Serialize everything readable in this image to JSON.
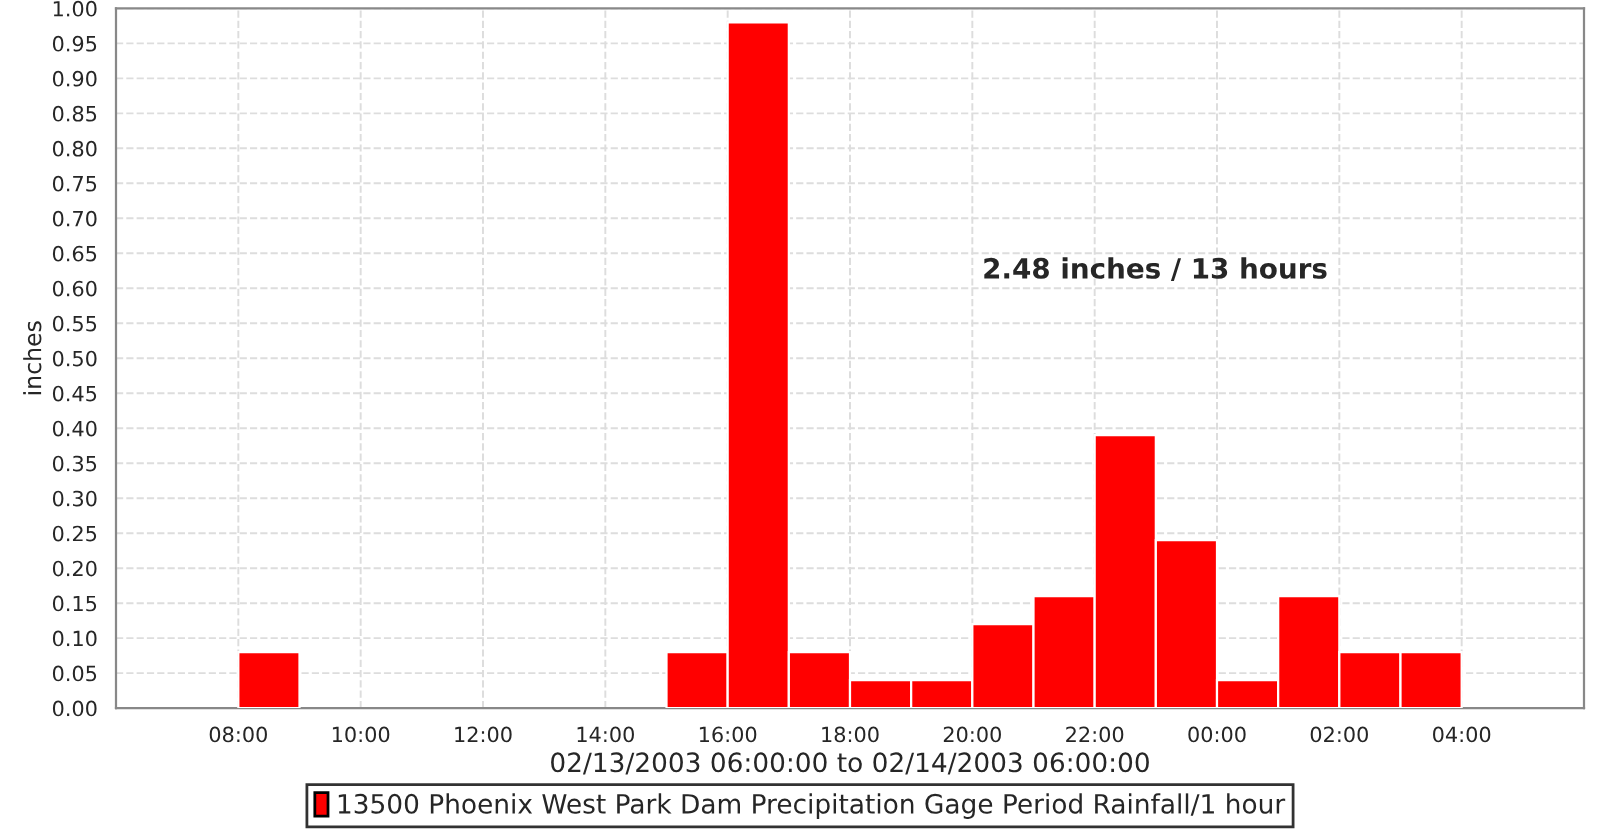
{
  "chart_data": {
    "type": "bar",
    "xlabel": "02/13/2003 06:00:00 to 02/14/2003 06:00:00",
    "ylabel": "inches",
    "annotations": [
      "2.48 inches / 13 hours"
    ],
    "x": [
      "2003-02-13T08:30",
      "2003-02-13T15:30",
      "2003-02-13T16:30",
      "2003-02-13T17:30",
      "2003-02-13T18:30",
      "2003-02-13T19:30",
      "2003-02-13T20:30",
      "2003-02-13T21:30",
      "2003-02-13T22:30",
      "2003-02-13T23:30",
      "2003-02-14T00:30",
      "2003-02-14T01:30",
      "2003-02-14T02:30",
      "2003-02-14T03:30"
    ],
    "series": [
      {
        "name": "13500 Phoenix West Park Dam Precipitation Gage Period Rainfall/1 hour",
        "color": "#ff0000",
        "values": [
          0.08,
          0.08,
          0.98,
          0.08,
          0.04,
          0.04,
          0.12,
          0.16,
          0.39,
          0.24,
          0.04,
          0.16,
          0.08,
          0.08
        ]
      }
    ],
    "xlim": [
      "2003-02-13T06:00",
      "2003-02-14T06:00"
    ],
    "xticks": [
      {
        "value": "2003-02-13T08:00",
        "label": "08:00"
      },
      {
        "value": "2003-02-13T10:00",
        "label": "10:00"
      },
      {
        "value": "2003-02-13T12:00",
        "label": "12:00"
      },
      {
        "value": "2003-02-13T14:00",
        "label": "14:00"
      },
      {
        "value": "2003-02-13T16:00",
        "label": "16:00"
      },
      {
        "value": "2003-02-13T18:00",
        "label": "18:00"
      },
      {
        "value": "2003-02-13T20:00",
        "label": "20:00"
      },
      {
        "value": "2003-02-13T22:00",
        "label": "22:00"
      },
      {
        "value": "2003-02-14T00:00",
        "label": "00:00"
      },
      {
        "value": "2003-02-14T02:00",
        "label": "02:00"
      },
      {
        "value": "2003-02-14T04:00",
        "label": "04:00"
      }
    ],
    "ylim": [
      0,
      1
    ],
    "yticks": [
      {
        "value": 0,
        "label": "0.00"
      },
      {
        "value": 0.05,
        "label": "0.05"
      },
      {
        "value": 0.1,
        "label": "0.10"
      },
      {
        "value": 0.15,
        "label": "0.15"
      },
      {
        "value": 0.2,
        "label": "0.20"
      },
      {
        "value": 0.25,
        "label": "0.25"
      },
      {
        "value": 0.3,
        "label": "0.30"
      },
      {
        "value": 0.35,
        "label": "0.35"
      },
      {
        "value": 0.4,
        "label": "0.40"
      },
      {
        "value": 0.45,
        "label": "0.45"
      },
      {
        "value": 0.5,
        "label": "0.50"
      },
      {
        "value": 0.55,
        "label": "0.55"
      },
      {
        "value": 0.6,
        "label": "0.60"
      },
      {
        "value": 0.65,
        "label": "0.65"
      },
      {
        "value": 0.7,
        "label": "0.70"
      },
      {
        "value": 0.75,
        "label": "0.75"
      },
      {
        "value": 0.8,
        "label": "0.80"
      },
      {
        "value": 0.85,
        "label": "0.85"
      },
      {
        "value": 0.9,
        "label": "0.90"
      },
      {
        "value": 0.95,
        "label": "0.95"
      },
      {
        "value": 1,
        "label": "1.00"
      }
    ],
    "grid": true,
    "legend": "bottom"
  }
}
